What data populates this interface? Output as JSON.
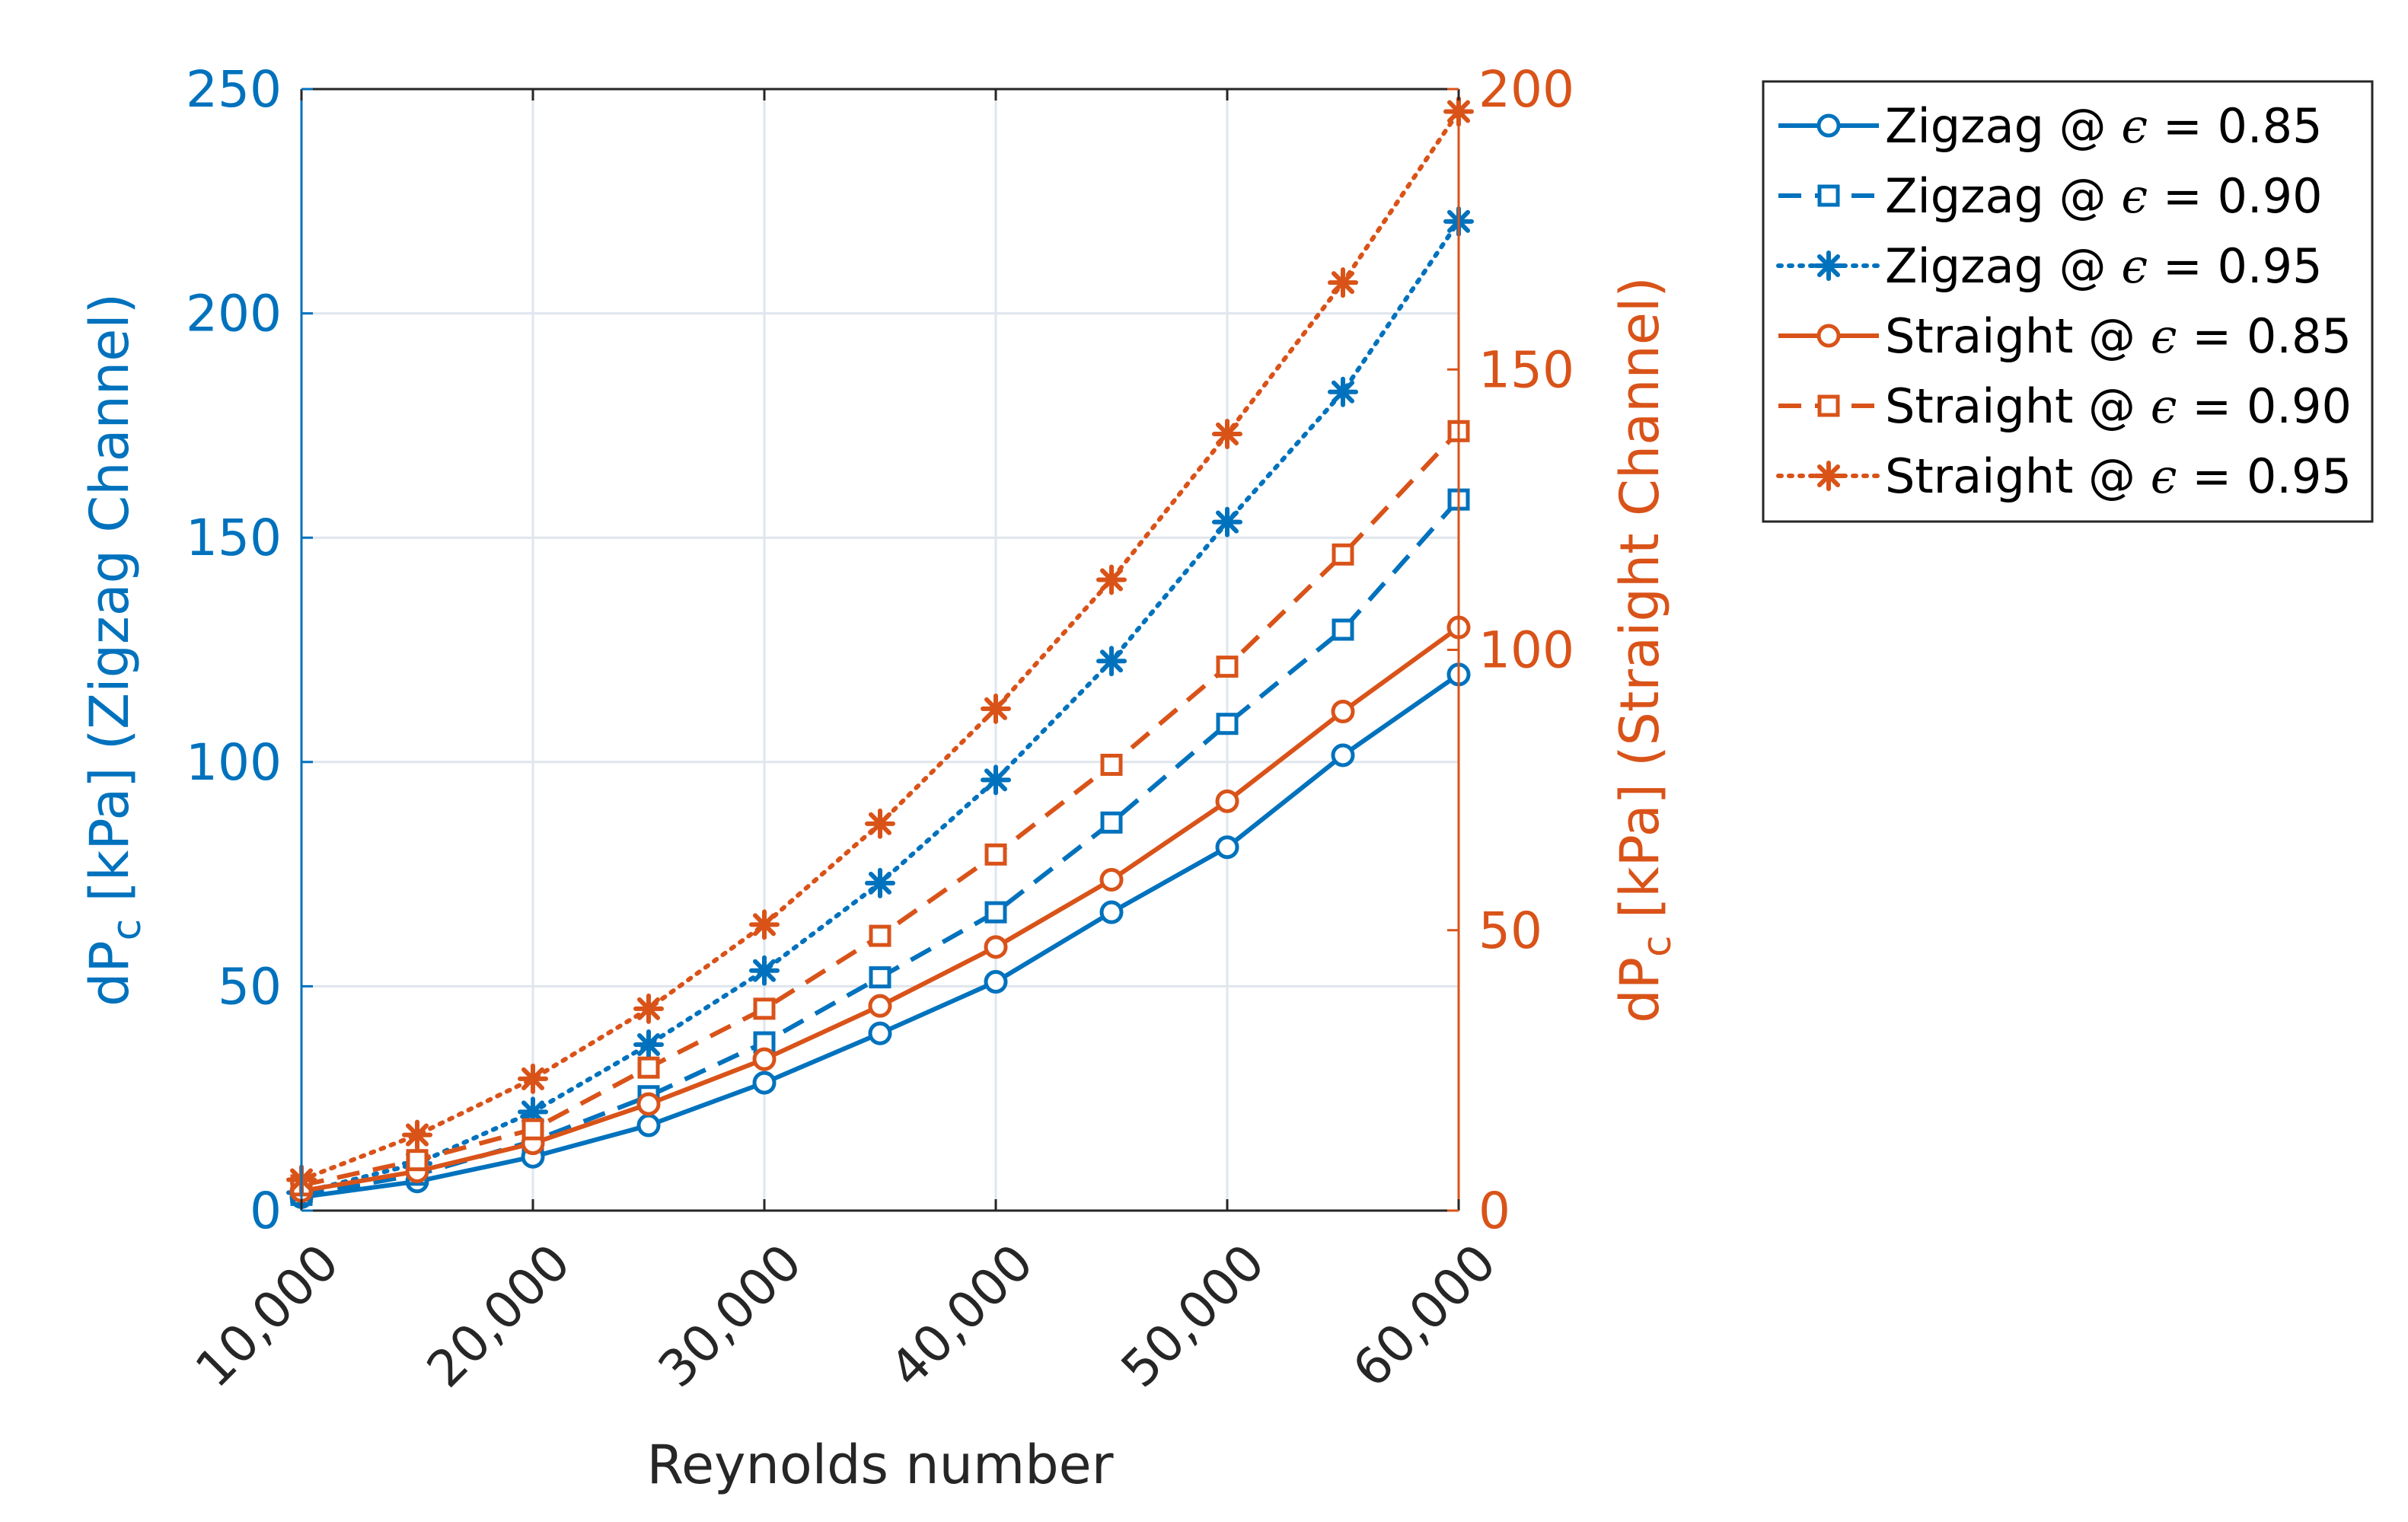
{
  "chart_data": {
    "type": "line",
    "xlabel": "Reynolds number",
    "ylabel_left": {
      "main": "dP",
      "sub": "c",
      "rest": " [kPa] (Zigzag Channel)"
    },
    "ylabel_right": {
      "main": "dP",
      "sub": "c",
      "rest": " [kPa] (Straight Channel)"
    },
    "x": [
      10000,
      15000,
      20000,
      25000,
      30000,
      35000,
      40000,
      45000,
      50000,
      55000,
      60000
    ],
    "xlim": [
      10000,
      60000
    ],
    "xticks": [
      10000,
      20000,
      30000,
      40000,
      50000,
      60000
    ],
    "xtick_labels": [
      "10,000",
      "20,000",
      "30,000",
      "40,000",
      "50,000",
      "60,000"
    ],
    "ylim_left": [
      0,
      250
    ],
    "yticks_left": [
      0,
      50,
      100,
      150,
      200,
      250
    ],
    "ytick_labels_left": [
      "0",
      "50",
      "100",
      "150",
      "200",
      "250"
    ],
    "ylim_right": [
      0,
      200
    ],
    "yticks_right": [
      0,
      50,
      100,
      150,
      200
    ],
    "ytick_labels_right": [
      "0",
      "50",
      "100",
      "150",
      "200"
    ],
    "grid": true,
    "legend_position": "outside-top-right",
    "colors": {
      "zigzag": "#0072BD",
      "straight": "#D95319",
      "grid": "#dfe6ee",
      "axis": "#262626"
    },
    "series": [
      {
        "name": "Zigzag @ ε = 0.85",
        "legend_prefix": "Zigzag @ ",
        "legend_suffix": " = 0.85",
        "axis": "left",
        "color": "#0072BD",
        "line": "solid",
        "marker": "circle",
        "values": [
          3,
          6.5,
          12,
          19,
          28.5,
          39.5,
          51,
          66.5,
          81,
          101.5,
          119.5
        ]
      },
      {
        "name": "Zigzag @ ε = 0.90",
        "legend_prefix": "Zigzag @ ",
        "legend_suffix": " = 0.90",
        "axis": "left",
        "color": "#0072BD",
        "line": "dashed",
        "marker": "square",
        "values": [
          3.5,
          8,
          15.5,
          25.5,
          37.5,
          52,
          66.5,
          86.5,
          108.5,
          129.5,
          158.5
        ]
      },
      {
        "name": "Zigzag @ ε = 0.95",
        "legend_prefix": "Zigzag @ ",
        "legend_suffix": " = 0.95",
        "axis": "left",
        "color": "#0072BD",
        "line": "dotted",
        "marker": "asterisk",
        "values": [
          4,
          10.5,
          22,
          37,
          53.5,
          73,
          96,
          122.5,
          153.5,
          182.5,
          220.5
        ]
      },
      {
        "name": "Straight @ ε = 0.85",
        "legend_prefix": "Straight @ ",
        "legend_suffix": " = 0.85",
        "axis": "right",
        "color": "#D95319",
        "line": "solid",
        "marker": "circle",
        "values": [
          3.5,
          7,
          12,
          19,
          27,
          36.5,
          47,
          59,
          73,
          89,
          104
        ]
      },
      {
        "name": "Straight @ ε = 0.90",
        "legend_prefix": "Straight @ ",
        "legend_suffix": " = 0.90",
        "axis": "right",
        "color": "#D95319",
        "line": "dashed",
        "marker": "square",
        "values": [
          4.5,
          9,
          14.5,
          25.5,
          36,
          49,
          63.5,
          79.5,
          97,
          117,
          139
        ]
      },
      {
        "name": "Straight @ ε = 0.95",
        "legend_prefix": "Straight @ ",
        "legend_suffix": " = 0.95",
        "axis": "right",
        "color": "#D95319",
        "line": "dotted",
        "marker": "asterisk",
        "values": [
          5.5,
          13.5,
          23.5,
          36,
          51,
          69,
          89.5,
          112.5,
          138.5,
          165.5,
          196
        ]
      }
    ]
  }
}
